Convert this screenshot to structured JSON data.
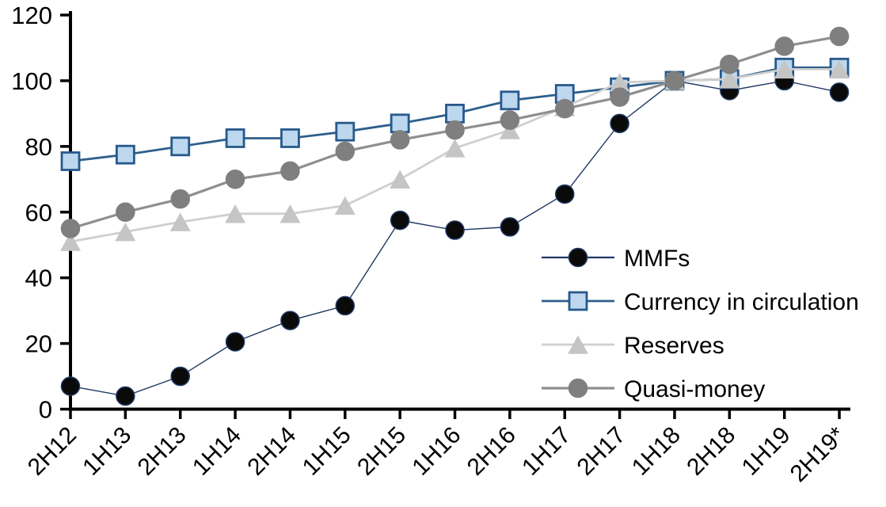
{
  "chart_data": {
    "type": "line",
    "title": "",
    "xlabel": "",
    "ylabel": "",
    "grid": false,
    "legend_position": "center-right",
    "ylim": [
      0,
      120
    ],
    "yticks": [
      0,
      20,
      40,
      60,
      80,
      100,
      120
    ],
    "categories": [
      "2H12",
      "1H13",
      "2H13",
      "1H14",
      "2H14",
      "1H15",
      "2H15",
      "1H16",
      "2H16",
      "1H17",
      "2H17",
      "1H18",
      "2H18",
      "1H19",
      "2H19*"
    ],
    "series": [
      {
        "name": "MMFs",
        "marker": "circle",
        "marker_size": 23,
        "marker_fill": "#0a0a0a",
        "marker_stroke": "#1F3864",
        "line_color": "#1F3864",
        "line_width": 1.4,
        "values": [
          7,
          4,
          10,
          20.5,
          27,
          31.5,
          57.5,
          54.5,
          55.5,
          65.5,
          87,
          100,
          97,
          100,
          96.5
        ]
      },
      {
        "name": "Currency in circulation",
        "marker": "square",
        "marker_size": 22,
        "marker_fill": "#BDD7EE",
        "marker_stroke": "#27598C",
        "line_color": "#2E5F8C",
        "line_width": 2.8,
        "values": [
          75.5,
          77.5,
          80,
          82.5,
          82.5,
          84.5,
          87,
          90,
          94,
          96,
          98,
          100,
          100.5,
          104,
          104
        ]
      },
      {
        "name": "Reserves",
        "marker": "triangle",
        "marker_size": 26,
        "marker_fill": "#C5C5C5",
        "marker_stroke": "#C5C5C5",
        "line_color": "#CFCFCF",
        "line_width": 2.8,
        "values": [
          51,
          54,
          57,
          59.5,
          59.5,
          62,
          70,
          79.5,
          85,
          92,
          99.5,
          100,
          100.5,
          103.5,
          103.5
        ]
      },
      {
        "name": "Quasi-money",
        "marker": "circle",
        "marker_size": 23,
        "marker_fill": "#7F7F7F",
        "marker_stroke": "#7F7F7F",
        "line_color": "#8F8F8F",
        "line_width": 3.2,
        "values": [
          55,
          60,
          64,
          70,
          72.5,
          78.5,
          82,
          85,
          88,
          91.5,
          95,
          100,
          105,
          110.5,
          113.5
        ]
      }
    ],
    "axis_color": "#000000"
  }
}
